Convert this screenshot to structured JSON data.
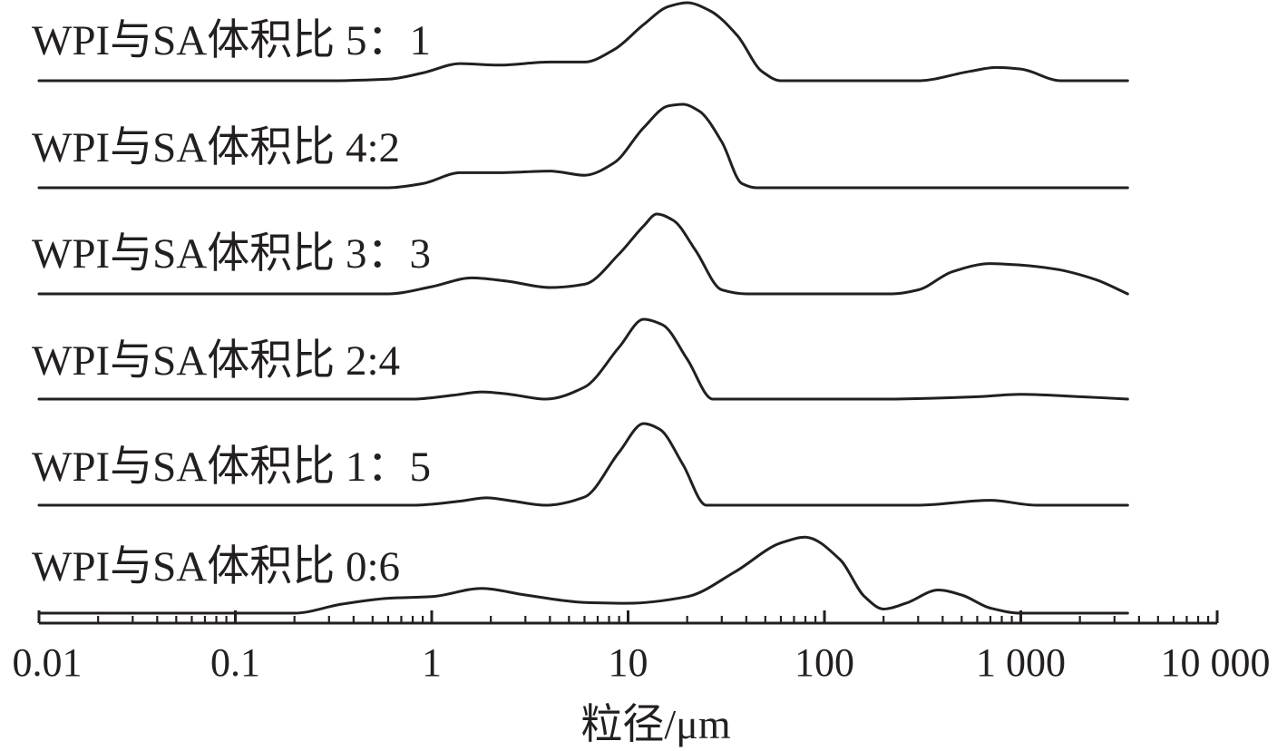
{
  "chart_data": {
    "type": "line",
    "xlabel": "粒径/μm",
    "ylabel": "",
    "xscale": "log",
    "xlim": [
      0.01,
      10000
    ],
    "x_ticks": [
      "0.01",
      "0.1",
      "1",
      "10",
      "100",
      "1 000",
      "10 000"
    ],
    "tick_values": [
      0.01,
      0.1,
      1,
      10,
      100,
      1000,
      10000
    ],
    "grid": false,
    "layout": "stacked-offset",
    "colors": {
      "line": "#231f20",
      "background": "#ffffff"
    },
    "series": [
      {
        "name": "WPI与SA体积比 5：1",
        "points": [
          [
            0.01,
            0
          ],
          [
            0.3,
            0
          ],
          [
            0.6,
            0.02
          ],
          [
            0.9,
            0.1
          ],
          [
            1.4,
            0.22
          ],
          [
            2.2,
            0.2
          ],
          [
            4,
            0.24
          ],
          [
            6,
            0.24
          ],
          [
            8.5,
            0.4
          ],
          [
            12,
            0.72
          ],
          [
            16,
            0.95
          ],
          [
            20,
            1.0
          ],
          [
            26,
            0.9
          ],
          [
            36,
            0.58
          ],
          [
            48,
            0.12
          ],
          [
            60,
            0
          ],
          [
            100,
            0
          ],
          [
            300,
            0
          ],
          [
            550,
            0.12
          ],
          [
            750,
            0.17
          ],
          [
            1000,
            0.15
          ],
          [
            1600,
            0
          ],
          [
            3500,
            0
          ]
        ]
      },
      {
        "name": "WPI与SA体积比 4:2",
        "points": [
          [
            0.01,
            0
          ],
          [
            0.6,
            0
          ],
          [
            0.9,
            0.05
          ],
          [
            1.4,
            0.18
          ],
          [
            2.2,
            0.18
          ],
          [
            4,
            0.2
          ],
          [
            6,
            0.15
          ],
          [
            8.5,
            0.3
          ],
          [
            12,
            0.72
          ],
          [
            16,
            0.98
          ],
          [
            19,
            1.0
          ],
          [
            23,
            0.92
          ],
          [
            30,
            0.55
          ],
          [
            38,
            0.05
          ],
          [
            45,
            0
          ],
          [
            3500,
            0
          ]
        ]
      },
      {
        "name": "WPI与SA体积比 3：3",
        "points": [
          [
            0.01,
            0
          ],
          [
            0.6,
            0
          ],
          [
            1,
            0.09
          ],
          [
            1.6,
            0.2
          ],
          [
            2.4,
            0.16
          ],
          [
            4,
            0.08
          ],
          [
            6,
            0.12
          ],
          [
            9,
            0.5
          ],
          [
            12,
            0.85
          ],
          [
            14,
            1.0
          ],
          [
            17,
            0.92
          ],
          [
            22,
            0.55
          ],
          [
            30,
            0.05
          ],
          [
            40,
            0
          ],
          [
            220,
            0
          ],
          [
            300,
            0.05
          ],
          [
            450,
            0.28
          ],
          [
            700,
            0.38
          ],
          [
            1000,
            0.36
          ],
          [
            1500,
            0.31
          ],
          [
            2400,
            0.18
          ],
          [
            3500,
            0
          ]
        ]
      },
      {
        "name": "WPI与SA体积比 2:4",
        "points": [
          [
            0.01,
            0
          ],
          [
            0.8,
            0
          ],
          [
            1.3,
            0.05
          ],
          [
            1.8,
            0.09
          ],
          [
            2.5,
            0.06
          ],
          [
            3.8,
            0
          ],
          [
            6,
            0.15
          ],
          [
            9,
            0.65
          ],
          [
            12,
            1.0
          ],
          [
            15,
            0.93
          ],
          [
            20,
            0.5
          ],
          [
            27,
            0
          ],
          [
            40,
            0
          ],
          [
            200,
            0
          ],
          [
            600,
            0.03
          ],
          [
            1000,
            0.06
          ],
          [
            2000,
            0.03
          ],
          [
            3500,
            0
          ]
        ]
      },
      {
        "name": "WPI与SA体积比 1：5",
        "points": [
          [
            0.01,
            0
          ],
          [
            0.8,
            0
          ],
          [
            1.4,
            0.05
          ],
          [
            1.9,
            0.09
          ],
          [
            2.6,
            0.05
          ],
          [
            3.8,
            0
          ],
          [
            6,
            0.1
          ],
          [
            9,
            0.65
          ],
          [
            12,
            1.0
          ],
          [
            14.5,
            0.93
          ],
          [
            19,
            0.5
          ],
          [
            25,
            0
          ],
          [
            40,
            0
          ],
          [
            300,
            0
          ],
          [
            700,
            0.06
          ],
          [
            1200,
            0
          ],
          [
            3500,
            0
          ]
        ]
      },
      {
        "name": "WPI与SA体积比 0:6",
        "points": [
          [
            0.01,
            0
          ],
          [
            0.2,
            0
          ],
          [
            0.35,
            0.11
          ],
          [
            0.6,
            0.18
          ],
          [
            1,
            0.2
          ],
          [
            1.8,
            0.3
          ],
          [
            3,
            0.22
          ],
          [
            6,
            0.13
          ],
          [
            10,
            0.12
          ],
          [
            20,
            0.2
          ],
          [
            35,
            0.5
          ],
          [
            60,
            0.85
          ],
          [
            80,
            0.92
          ],
          [
            120,
            0.65
          ],
          [
            160,
            0.2
          ],
          [
            200,
            0.05
          ],
          [
            260,
            0.12
          ],
          [
            380,
            0.28
          ],
          [
            500,
            0.22
          ],
          [
            700,
            0.06
          ],
          [
            1000,
            0
          ],
          [
            3500,
            0
          ]
        ]
      }
    ]
  }
}
